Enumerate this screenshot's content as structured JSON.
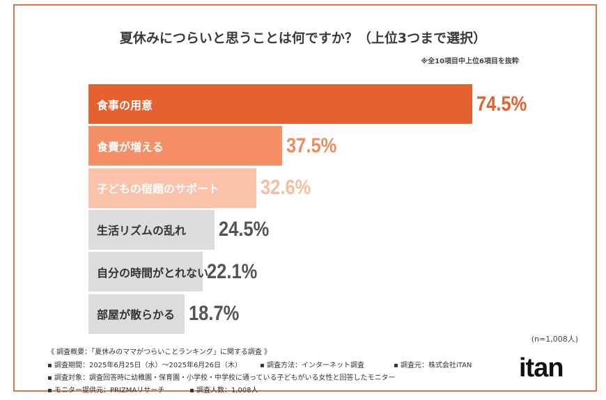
{
  "chart_data": {
    "type": "bar",
    "orientation": "horizontal",
    "title": "夏休みにつらいと思うことは何ですか？（上位3つまで選択）",
    "note": "※全10項目中上位6項目を抜粋",
    "categories": [
      "食事の用意",
      "食費が増える",
      "子どもの宿題のサポート",
      "生活リズムの乱れ",
      "自分の時間がとれない",
      "部屋が散らかる"
    ],
    "values": [
      74.5,
      37.5,
      32.6,
      24.5,
      22.1,
      18.7
    ],
    "value_labels": [
      "74.5%",
      "37.5%",
      "32.6%",
      "24.5%",
      "22.1%",
      "18.7%"
    ],
    "bar_colors": [
      "#E5612F",
      "#F48F66",
      "#F9C2A9",
      "#DCDCDC",
      "#DCDCDC",
      "#DCDCDC"
    ],
    "label_colors": [
      "#ffffff",
      "#ffffff",
      "#ffffff",
      "#333333",
      "#333333",
      "#333333"
    ],
    "value_colors": [
      "#E5612F",
      "#F08B5F",
      "#F6BDA3",
      "#555555",
      "#555555",
      "#555555"
    ],
    "xlim": [
      0,
      100
    ],
    "grid": false,
    "sample": "(n=1,008人)"
  },
  "footer": {
    "line1": "《 調査概要：「夏休みのママがつらいことランキング」に関する調査 》",
    "period": "▪ 調査期間：2025年6月25日（水）～2025年6月26日（木）",
    "method": "▪ 調査方法：インターネット調査",
    "source": "▪ 調査元：株式会社iTAN",
    "target": "▪ 調査対象：調査回答時に幼稚園・保育園・小学校・中学校に通っている子どもがいる女性と回答したモニター",
    "provider": "▪ モニター提供元：PRIZMAリサーチ",
    "count": "▪ 調査人数：1,008人"
  },
  "logo": "itan"
}
